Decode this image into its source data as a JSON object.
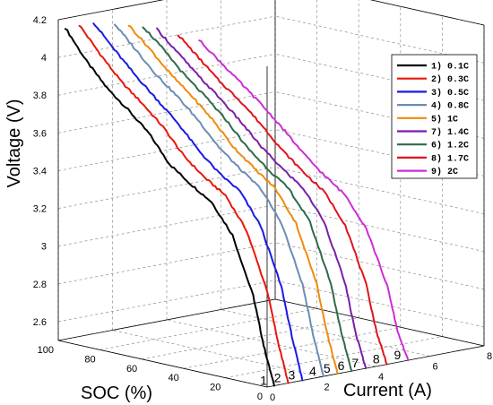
{
  "chart_data": {
    "type": "line",
    "zlabel": "Voltage (V)",
    "xlabel": "SOC (%)",
    "ylabel": "Current (A)",
    "soc_ticks": [
      "0",
      "20",
      "40",
      "60",
      "80",
      "100"
    ],
    "current_ticks": [
      "0",
      "2",
      "4",
      "6",
      "8"
    ],
    "voltage_ticks": [
      "2.6",
      "2.8",
      "3",
      "3.2",
      "3.4",
      "3.6",
      "3.8",
      "4",
      "4.2"
    ],
    "soc_range": [
      0,
      100
    ],
    "current_range": [
      0,
      8
    ],
    "voltage_range": [
      2.5,
      4.2
    ],
    "grid": true,
    "legend_position": "top-right",
    "legend": [
      {
        "label": "1) 0.1C",
        "color": "#000000"
      },
      {
        "label": "2) 0.3C",
        "color": "#e8170c"
      },
      {
        "label": "3) 0.5C",
        "color": "#1a1ae6"
      },
      {
        "label": "4) 0.8C",
        "color": "#6b8cb5"
      },
      {
        "label": "5) 1C",
        "color": "#f08a0c"
      },
      {
        "label": "7) 1.4C",
        "color": "#7a1fa8"
      },
      {
        "label": "6) 1.2C",
        "color": "#2e6b4a"
      },
      {
        "label": "8) 1.7C",
        "color": "#e0141e"
      },
      {
        "label": "9) 2C",
        "color": "#cc2ed6"
      }
    ],
    "series": [
      {
        "name": "1) 0.1C",
        "end_label": "1",
        "color": "#000000",
        "current": 0.26,
        "soc": [
          100,
          90,
          80,
          70,
          60,
          50,
          40,
          30,
          20,
          10,
          5,
          0
        ],
        "voltage": [
          4.15,
          4.0,
          3.88,
          3.79,
          3.69,
          3.55,
          3.47,
          3.4,
          3.25,
          2.95,
          2.7,
          2.5
        ]
      },
      {
        "name": "2) 0.3C",
        "end_label": "2",
        "color": "#e8170c",
        "current": 0.78,
        "soc": [
          100,
          90,
          80,
          70,
          60,
          50,
          40,
          30,
          20,
          10,
          5,
          0
        ],
        "voltage": [
          4.15,
          4.02,
          3.9,
          3.81,
          3.71,
          3.58,
          3.49,
          3.42,
          3.26,
          2.96,
          2.71,
          2.5
        ]
      },
      {
        "name": "3) 0.5C",
        "end_label": "3",
        "color": "#1a1ae6",
        "current": 1.3,
        "soc": [
          100,
          90,
          80,
          70,
          60,
          50,
          40,
          30,
          20,
          10,
          5,
          0
        ],
        "voltage": [
          4.15,
          4.03,
          3.92,
          3.82,
          3.72,
          3.6,
          3.5,
          3.43,
          3.27,
          2.97,
          2.72,
          2.5
        ]
      },
      {
        "name": "4) 0.8C",
        "end_label": "4",
        "color": "#6b8cb5",
        "current": 2.08,
        "soc": [
          100,
          90,
          80,
          70,
          60,
          50,
          40,
          30,
          20,
          10,
          5,
          0
        ],
        "voltage": [
          4.12,
          4.01,
          3.9,
          3.81,
          3.71,
          3.59,
          3.5,
          3.42,
          3.26,
          2.96,
          2.71,
          2.5
        ]
      },
      {
        "name": "5) 1C",
        "end_label": "5",
        "color": "#f08a0c",
        "current": 2.6,
        "soc": [
          100,
          90,
          80,
          70,
          60,
          50,
          40,
          30,
          20,
          10,
          5,
          0
        ],
        "voltage": [
          4.1,
          4.0,
          3.89,
          3.8,
          3.7,
          3.58,
          3.49,
          3.41,
          3.25,
          2.95,
          2.7,
          2.5
        ]
      },
      {
        "name": "6) 1.2C",
        "end_label": "6",
        "color": "#2e6b4a",
        "current": 3.12,
        "soc": [
          100,
          90,
          80,
          70,
          60,
          50,
          40,
          30,
          20,
          10,
          5,
          0
        ],
        "voltage": [
          4.08,
          3.98,
          3.87,
          3.78,
          3.68,
          3.56,
          3.47,
          3.39,
          3.24,
          2.94,
          2.69,
          2.5
        ]
      },
      {
        "name": "7) 1.4C",
        "end_label": "7",
        "color": "#7a1fa8",
        "current": 3.64,
        "soc": [
          100,
          90,
          80,
          70,
          60,
          50,
          40,
          30,
          20,
          10,
          5,
          0
        ],
        "voltage": [
          4.05,
          3.95,
          3.85,
          3.76,
          3.66,
          3.55,
          3.46,
          3.38,
          3.23,
          2.93,
          2.68,
          2.5
        ]
      },
      {
        "name": "8) 1.7C",
        "end_label": "8",
        "color": "#e0141e",
        "current": 4.42,
        "soc": [
          100,
          90,
          80,
          70,
          60,
          50,
          40,
          30,
          20,
          10,
          5,
          0
        ],
        "voltage": [
          4.0,
          3.9,
          3.8,
          3.72,
          3.62,
          3.51,
          3.42,
          3.34,
          3.19,
          2.9,
          2.66,
          2.5
        ]
      },
      {
        "name": "9) 2C",
        "end_label": "9",
        "color": "#cc2ed6",
        "current": 5.2,
        "soc": [
          100,
          90,
          80,
          70,
          60,
          50,
          40,
          30,
          20,
          10,
          5,
          0
        ],
        "voltage": [
          3.95,
          3.86,
          3.77,
          3.68,
          3.58,
          3.47,
          3.38,
          3.3,
          3.15,
          2.87,
          2.64,
          2.5
        ]
      }
    ]
  }
}
